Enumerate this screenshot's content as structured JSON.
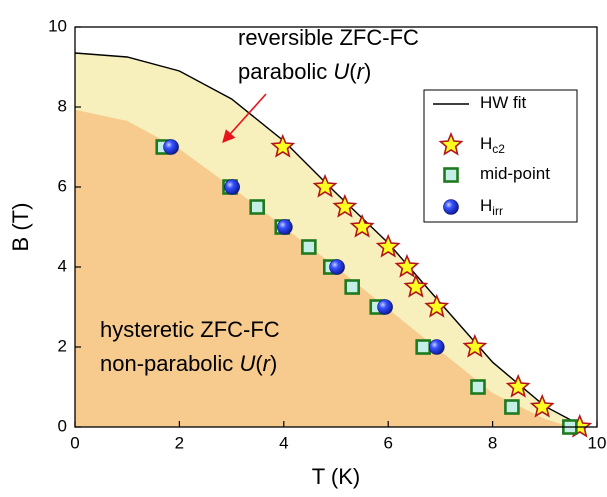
{
  "chart_data": {
    "type": "scatter",
    "xlabel": "T (K)",
    "ylabel": "B (T)",
    "xlim": [
      0,
      10
    ],
    "ylim": [
      0,
      10
    ],
    "xticks": [
      0,
      2,
      4,
      6,
      8,
      10
    ],
    "yticks": [
      0,
      2,
      4,
      6,
      8,
      10
    ],
    "regions": [
      {
        "color": "#f7efbc",
        "x": [
          0,
          1,
          2,
          3,
          4,
          5,
          6,
          7,
          8,
          9,
          9.75
        ],
        "values": [
          9.35,
          9.25,
          8.9,
          8.2,
          7.15,
          5.85,
          4.6,
          3.1,
          1.62,
          0.52,
          0
        ]
      },
      {
        "color": "#f7ca8e",
        "x": [
          0,
          1,
          2,
          3,
          4,
          5,
          6,
          7,
          8,
          9,
          9.5
        ],
        "values": [
          7.93,
          7.65,
          6.95,
          6.0,
          5.0,
          4.0,
          2.95,
          1.9,
          0.85,
          0.2,
          0
        ]
      }
    ],
    "series": [
      {
        "name": "HW fit",
        "marker": "line",
        "color": "#000000",
        "x": [
          0,
          1,
          2,
          3,
          4,
          5,
          6,
          7,
          8,
          9,
          9.75
        ],
        "values": [
          9.35,
          9.25,
          8.9,
          8.2,
          7.15,
          5.85,
          4.6,
          3.1,
          1.62,
          0.52,
          0
        ]
      },
      {
        "name": "H",
        "name_sub": "c2",
        "marker": "star",
        "color": "#ffff22",
        "edge": "#b3151b",
        "x": [
          3.98,
          4.79,
          5.17,
          5.5,
          6.0,
          6.36,
          6.53,
          6.93,
          7.66,
          8.49,
          8.95,
          9.67
        ],
        "values": [
          7.0,
          6.0,
          5.5,
          5.0,
          4.5,
          4.0,
          3.5,
          3.0,
          2.0,
          1.0,
          0.5,
          0
        ]
      },
      {
        "name": "mid-point",
        "marker": "square",
        "color": "#c3efe6",
        "edge": "#1f7a1f",
        "x": [
          1.69,
          2.97,
          3.49,
          3.97,
          4.48,
          4.9,
          5.31,
          5.79,
          6.67,
          7.72,
          8.37,
          9.48
        ],
        "values": [
          7.0,
          6.0,
          5.5,
          5.0,
          4.5,
          4.0,
          3.5,
          3.0,
          2.0,
          1.0,
          0.5,
          0
        ]
      },
      {
        "name": "H",
        "name_sub": "irr",
        "marker": "sphere",
        "color": "#1a30e6",
        "edge": "#0a1070",
        "x": [
          1.84,
          3.01,
          4.02,
          5.02,
          5.94,
          6.93
        ],
        "values": [
          7.0,
          6.0,
          5.0,
          4.0,
          3.0,
          2.0
        ]
      }
    ],
    "annotations": [
      {
        "x": 238,
        "lines": [
          [
            {
              "text": "reversible ZFC-FC"
            }
          ],
          [
            {
              "text": "parabolic "
            },
            {
              "text": "U",
              "italic": true
            },
            {
              "text": "("
            },
            {
              "text": "r",
              "italic": true
            },
            {
              "text": ")"
            }
          ]
        ]
      },
      {
        "x": 100,
        "lines": [
          [
            {
              "text": "hysteretic ZFC-FC"
            }
          ],
          [
            {
              "text": "non-parabolic "
            },
            {
              "text": "U",
              "italic": true
            },
            {
              "text": "("
            },
            {
              "text": "r",
              "italic": true
            },
            {
              "text": ")"
            }
          ]
        ]
      }
    ]
  }
}
